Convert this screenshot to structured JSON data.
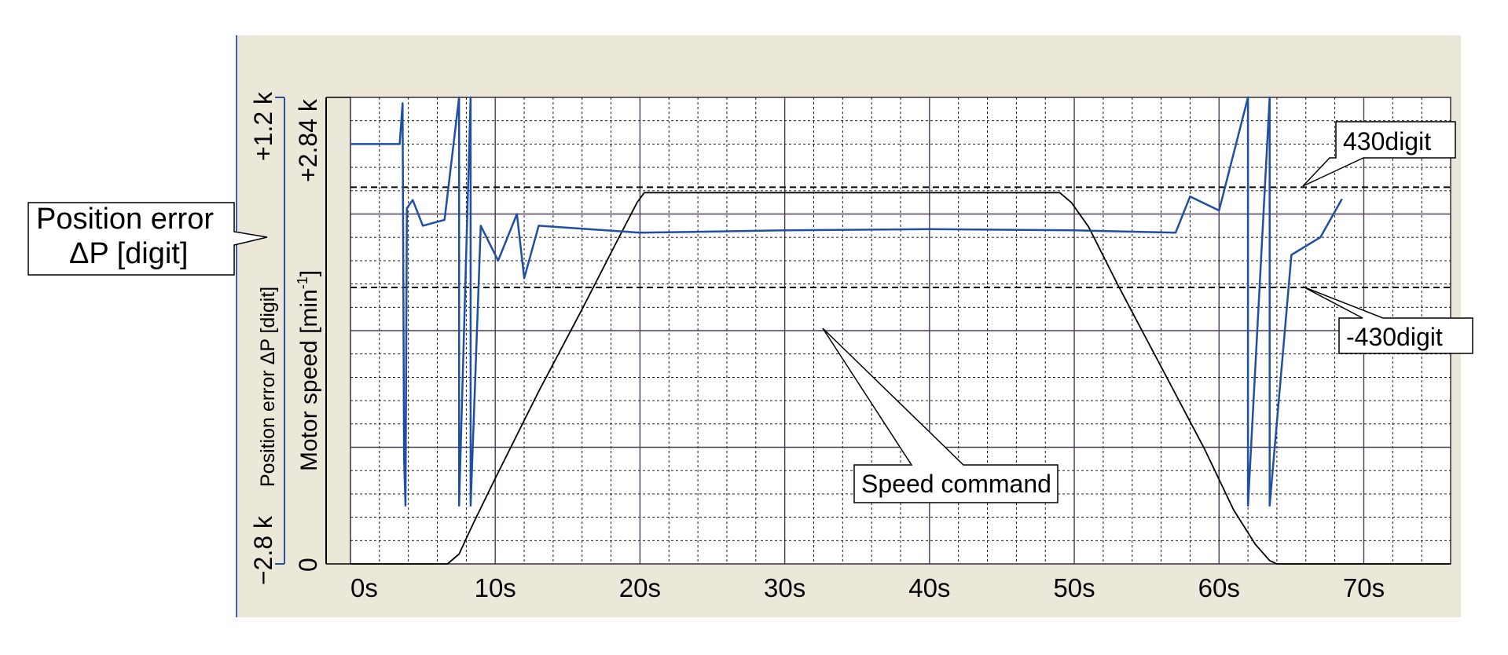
{
  "chart_data": {
    "type": "line",
    "x_unit": "s",
    "x_ticks": [
      "0s",
      "10s",
      "20s",
      "30s",
      "40s",
      "50s",
      "60s",
      "70s"
    ],
    "xlim": [
      0,
      76
    ],
    "axes": {
      "position_error": {
        "label": "Position error ΔP [digit]",
        "top_label": "+1.2 k",
        "bottom_label": "−2.8 k",
        "ylim": [
          -2800,
          1200
        ]
      },
      "motor_speed": {
        "label_main": "Motor speed [min",
        "label_sup": "-1",
        "label_end": "]",
        "top_label": "+2.84 k",
        "bottom_label": "0",
        "ylim": [
          0,
          2840
        ]
      }
    },
    "callouts": {
      "position_error_line1": "Position error",
      "position_error_line2": "ΔP [digit]",
      "upper_limit": "430digit",
      "lower_limit": "-430digit",
      "speed_command": "Speed command"
    },
    "thresholds": [
      430,
      -430
    ],
    "grid": true,
    "series": [
      {
        "label": "Speed command",
        "color": "#000000",
        "axis": "motor_speed",
        "points": [
          [
            0,
            0
          ],
          [
            6.7,
            0
          ],
          [
            7.5,
            60
          ],
          [
            8.5,
            250
          ],
          [
            10,
            520
          ],
          [
            13,
            1050
          ],
          [
            16,
            1550
          ],
          [
            18.5,
            1980
          ],
          [
            19.8,
            2200
          ],
          [
            20.3,
            2260
          ],
          [
            49,
            2260
          ],
          [
            49.8,
            2200
          ],
          [
            51,
            2050
          ],
          [
            53,
            1700
          ],
          [
            56,
            1200
          ],
          [
            59,
            700
          ],
          [
            61,
            330
          ],
          [
            62.5,
            120
          ],
          [
            63.5,
            20
          ],
          [
            64,
            0
          ],
          [
            76,
            0
          ]
        ]
      },
      {
        "label": "Position error",
        "color": "#1f4fa3",
        "axis": "position_error",
        "points": [
          [
            0,
            800
          ],
          [
            3.4,
            800
          ],
          [
            3.6,
            1150
          ],
          [
            3.7,
            -1900
          ],
          [
            3.8,
            -2300
          ],
          [
            3.9,
            250
          ],
          [
            4.3,
            320
          ],
          [
            5,
            100
          ],
          [
            6.5,
            150
          ],
          [
            7.5,
            1200
          ],
          [
            7.5,
            -2300
          ],
          [
            8.3,
            1200
          ],
          [
            8.3,
            -2300
          ],
          [
            9,
            100
          ],
          [
            10.2,
            -200
          ],
          [
            11.5,
            200
          ],
          [
            12,
            -350
          ],
          [
            13,
            100
          ],
          [
            20,
            40
          ],
          [
            30,
            60
          ],
          [
            40,
            70
          ],
          [
            50,
            60
          ],
          [
            57,
            40
          ],
          [
            58,
            350
          ],
          [
            60,
            230
          ],
          [
            62,
            1200
          ],
          [
            62,
            -2300
          ],
          [
            63.5,
            1200
          ],
          [
            63.5,
            -2300
          ],
          [
            65,
            -150
          ],
          [
            67,
            0
          ],
          [
            68.5,
            330
          ]
        ]
      }
    ]
  }
}
